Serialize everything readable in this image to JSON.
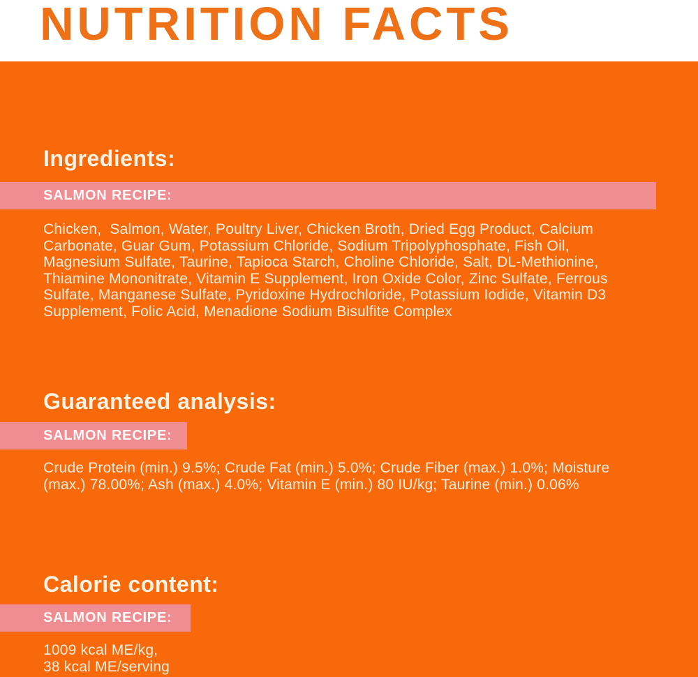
{
  "header": {
    "title": "NUTRITION FACTS"
  },
  "colors": {
    "background_orange": "#f8690b",
    "title_orange": "#ee7017",
    "banner_pink": "#f08d92",
    "heading_text": "#faf1e1",
    "body_text": "#f9eedd",
    "banner_text": "#fffaf8"
  },
  "sections": [
    {
      "heading": "Ingredients:",
      "recipe_label": "SALMON RECIPE:",
      "body": "Chicken,  Salmon, Water, Poultry Liver, Chicken Broth, Dried Egg Product, Calcium\nCarbonate, Guar Gum, Potassium Chloride, Sodium Tripolyphosphate, Fish Oil,\nMagnesium Sulfate, Taurine, Tapioca Starch, Choline Chloride, Salt, DL-Methionine,\nThiamine Mononitrate, Vitamin E Supplement, Iron Oxide Color, Zinc Sulfate, Ferrous\nSulfate, Manganese Sulfate, Pyridoxine Hydrochloride, Potassium Iodide, Vitamin D3\nSupplement, Folic Acid, Menadione Sodium Bisulfite Complex"
    },
    {
      "heading": "Guaranteed analysis:",
      "recipe_label": "SALMON RECIPE:",
      "body": "Crude Protein (min.) 9.5%; Crude Fat (min.) 5.0%; Crude Fiber (max.) 1.0%; Moisture\n(max.) 78.00%; Ash (max.) 4.0%; Vitamin E (min.) 80 IU/kg; Taurine (min.) 0.06%"
    },
    {
      "heading": "Calorie content:",
      "recipe_label": "SALMON RECIPE:",
      "body": "1009 kcal ME/kg,\n38 kcal ME/serving"
    }
  ]
}
